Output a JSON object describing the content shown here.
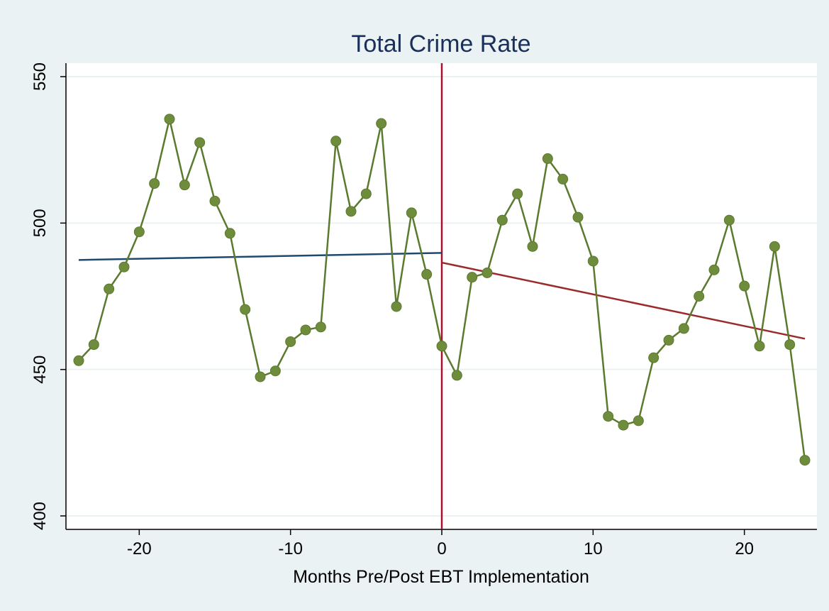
{
  "chart_data": {
    "type": "line",
    "title": "Total Crime Rate",
    "xlabel": "Months Pre/Post EBT Implementation",
    "ylabel": "",
    "xlim": [
      -25,
      25
    ],
    "ylim": [
      395,
      550
    ],
    "x_ticks": [
      -20,
      -10,
      0,
      10,
      20
    ],
    "y_ticks": [
      400,
      450,
      500,
      550
    ],
    "grid": true,
    "legend": "none",
    "series": [
      {
        "style": "line-markers",
        "x": [
          -24,
          -23,
          -22,
          -21,
          -20,
          -19,
          -18,
          -17,
          -16,
          -15,
          -14,
          -13,
          -12,
          -11,
          -10,
          -9,
          -8,
          -7,
          -6,
          -5,
          -4,
          -3,
          -2,
          -1,
          0,
          1,
          2,
          3,
          4,
          5,
          6,
          7,
          8,
          9,
          10,
          11,
          12,
          13,
          14,
          15,
          16,
          17,
          18,
          19,
          20,
          21,
          22,
          23,
          24
        ],
        "y": [
          453,
          458.5,
          477.5,
          485,
          497,
          513.5,
          535.5,
          513,
          527.5,
          507.5,
          496.5,
          470.5,
          447.5,
          449.5,
          459.5,
          463.5,
          464.5,
          528,
          504,
          510,
          534,
          471.5,
          503.5,
          482.5,
          458,
          448,
          481.5,
          483,
          501,
          510,
          492,
          522,
          515,
          502,
          487,
          434,
          431,
          432.5,
          454,
          460,
          464,
          475,
          484,
          501,
          478.5,
          458,
          492,
          458.5,
          419
        ]
      },
      {
        "style": "fit-pre",
        "x": [
          -24,
          0
        ],
        "y": [
          487.4,
          489.8
        ]
      },
      {
        "style": "fit-post",
        "x": [
          0,
          24
        ],
        "y": [
          486.5,
          460.5
        ]
      }
    ],
    "reference_line": {
      "x": 0
    },
    "colors": {
      "data_line": "#5a7a2e",
      "data_marker": "#6e8c3b",
      "fit_pre": "#1f4a6e",
      "fit_post": "#9b2b2b",
      "reference": "#a8102e",
      "title": "#1a2f5a",
      "grid": "#eaf2f3",
      "outer_bg": "#eaf2f3",
      "plot_bg": "#ffffff"
    }
  }
}
